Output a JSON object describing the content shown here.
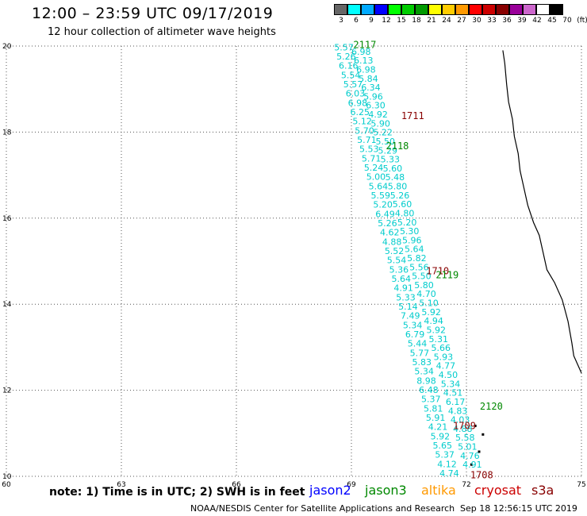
{
  "header": {
    "title": "12:00 – 23:59 UTC 09/17/2019",
    "subtitle": "12 hour collection of altimeter wave heights"
  },
  "legend": {
    "colors": [
      "#666666",
      "#00ffff",
      "#00aaff",
      "#0000ff",
      "#00ff00",
      "#00cc00",
      "#009900",
      "#ffff00",
      "#ffcc00",
      "#ff9900",
      "#ff0000",
      "#cc0000",
      "#880000",
      "#990099",
      "#cc66cc",
      "#ffffff",
      "#000000"
    ],
    "labels": [
      "3",
      "6",
      "9",
      "12",
      "15",
      "18",
      "21",
      "24",
      "27",
      "30",
      "33",
      "36",
      "39",
      "42",
      "45",
      "70",
      "(ft)"
    ]
  },
  "axes": {
    "lon_ticks": [
      "60",
      "63",
      "66",
      "69",
      "72",
      "75"
    ],
    "lat_ticks": [
      "10",
      "12",
      "14",
      "16",
      "18",
      "20"
    ]
  },
  "chart_data": {
    "type": "scatter",
    "x_range": [
      60,
      75
    ],
    "y_range": [
      10,
      20
    ],
    "swh_values_ft": [
      "5.57",
      "5.26",
      "6.16",
      "5.54",
      "5.57",
      "6.03",
      "6.98",
      "6.25",
      "5.12",
      "5.70",
      "5.71",
      "5.53",
      "5.71",
      "5.24",
      "5.00",
      "5.64",
      "5.59",
      "5.20",
      "6.49",
      "5.26",
      "4.62",
      "4.88",
      "5.52",
      "5.54",
      "5.36",
      "5.64",
      "4.91",
      "5.33",
      "5.14",
      "7.49",
      "5.34",
      "6.79",
      "5.44",
      "5.77",
      "5.83",
      "5.34",
      "8.98",
      "6.48",
      "5.37",
      "5.81",
      "5.91",
      "4.21",
      "5.92",
      "5.65",
      "5.37",
      "4.12",
      "4.74",
      "6.98",
      "6.13",
      "6.98",
      "5.84",
      "6.34",
      "5.96",
      "6.30",
      "4.92",
      "5.90",
      "5.22",
      "5.50",
      "5.29",
      "5.33",
      "5.60",
      "5.48",
      "5.80",
      "5.26",
      "5.60",
      "4.80",
      "5.20",
      "5.30",
      "5.96",
      "5.64",
      "5.82",
      "5.56",
      "5.50",
      "5.80",
      "4.70",
      "5.10",
      "5.92",
      "4.94",
      "5.92",
      "5.31",
      "5.66",
      "5.93",
      "4.77",
      "4.50",
      "5.34",
      "4.51",
      "6.17",
      "4.83",
      "4.03",
      "4.88",
      "5.58",
      "5.01",
      "4.76",
      "4.91"
    ],
    "pass_labels": [
      {
        "text": "2117",
        "mission": "jason3"
      },
      {
        "text": "1711",
        "mission": "cryosat"
      },
      {
        "text": "2118",
        "mission": "jason3"
      },
      {
        "text": "1710",
        "mission": "cryosat"
      },
      {
        "text": "2119",
        "mission": "jason3"
      },
      {
        "text": "2120",
        "mission": "jason3"
      },
      {
        "text": "1709",
        "mission": "cryosat"
      },
      {
        "text": "1708",
        "mission": "cryosat"
      }
    ]
  },
  "footer": {
    "note": "note: 1) Time is in UTC; 2) SWH is in feet",
    "missions": [
      {
        "name": "jason2",
        "color": "#0000ff"
      },
      {
        "name": "jason3",
        "color": "#008800"
      },
      {
        "name": "altika",
        "color": "#ff9900"
      },
      {
        "name": "cryosat",
        "color": "#cc0000"
      },
      {
        "name": "s3a",
        "color": "#880000"
      }
    ],
    "credits": "NOAA/NESDIS Center for Satellite Applications and Research",
    "timestamp": "Sep 18 12:56:15 UTC 2019"
  }
}
